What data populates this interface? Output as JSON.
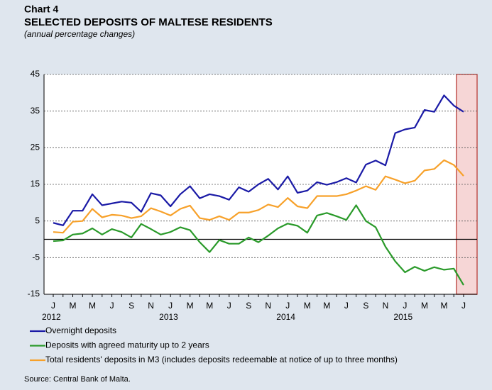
{
  "chart_data": {
    "type": "line",
    "label": "Chart 4",
    "title": "SELECTED DEPOSITS OF MALTESE RESIDENTS",
    "subtitle": "(annual percentage changes)",
    "source": "Source: Central Bank of Malta.",
    "categories": [
      "J",
      null,
      "M",
      null,
      "M",
      null,
      "J",
      null,
      "S",
      null,
      "N",
      null,
      "J",
      null,
      "M",
      null,
      "M",
      null,
      "J",
      null,
      "S",
      null,
      "N",
      null,
      "J",
      null,
      "M",
      null,
      "M",
      null,
      "J",
      null,
      "S",
      null,
      "N",
      null,
      "J",
      null,
      "M",
      null,
      "M",
      null,
      "J"
    ],
    "years": [
      "2012",
      "2013",
      "2014",
      "2015"
    ],
    "ylim": [
      -15,
      45
    ],
    "yticks": [
      -15,
      -5,
      5,
      15,
      25,
      35,
      45
    ],
    "grid": true,
    "series": [
      {
        "name": "Overnight deposits",
        "color": "#1a1aa6",
        "values": [
          4.5,
          3.8,
          7.8,
          7.8,
          12.3,
          9.3,
          9.8,
          10.3,
          10.0,
          7.5,
          12.6,
          12.0,
          9.0,
          12.3,
          14.5,
          11.2,
          12.3,
          11.8,
          10.8,
          14.2,
          13.0,
          15.0,
          16.5,
          13.6,
          17.2,
          12.7,
          13.3,
          15.6,
          14.9,
          15.6,
          16.7,
          15.5,
          20.4,
          21.5,
          20.2,
          29.0,
          30.0,
          30.5,
          35.3,
          34.8,
          39.3,
          36.5,
          34.8
        ]
      },
      {
        "name": "Deposits with agreed maturity up to 2 years",
        "color": "#2a9a2a",
        "values": [
          -0.5,
          -0.3,
          1.3,
          1.6,
          3.0,
          1.3,
          2.8,
          2.0,
          0.5,
          4.2,
          2.8,
          1.3,
          2.0,
          3.3,
          2.5,
          -0.8,
          -3.5,
          -0.2,
          -1.2,
          -1.2,
          0.5,
          -0.8,
          1.0,
          3.0,
          4.3,
          3.7,
          1.8,
          6.5,
          7.2,
          6.3,
          5.3,
          9.3,
          5.0,
          3.3,
          -2.0,
          -6.0,
          -9.0,
          -7.5,
          -8.6,
          -7.6,
          -8.3,
          -8.0,
          -12.5
        ]
      },
      {
        "name": "Total residents' deposits in M3 (includes deposits redeemable at notice of up to three months)",
        "color": "#f7a12a",
        "values": [
          2.0,
          1.8,
          4.8,
          5.0,
          8.3,
          6.0,
          6.7,
          6.5,
          5.8,
          6.3,
          8.5,
          7.6,
          6.5,
          8.3,
          9.2,
          5.8,
          5.3,
          6.3,
          5.3,
          7.3,
          7.3,
          8.0,
          9.5,
          8.8,
          11.3,
          9.0,
          8.5,
          11.8,
          11.8,
          11.8,
          12.3,
          13.3,
          14.5,
          13.5,
          17.2,
          16.3,
          15.3,
          16.0,
          18.8,
          19.2,
          21.6,
          20.3,
          17.3
        ]
      }
    ]
  }
}
